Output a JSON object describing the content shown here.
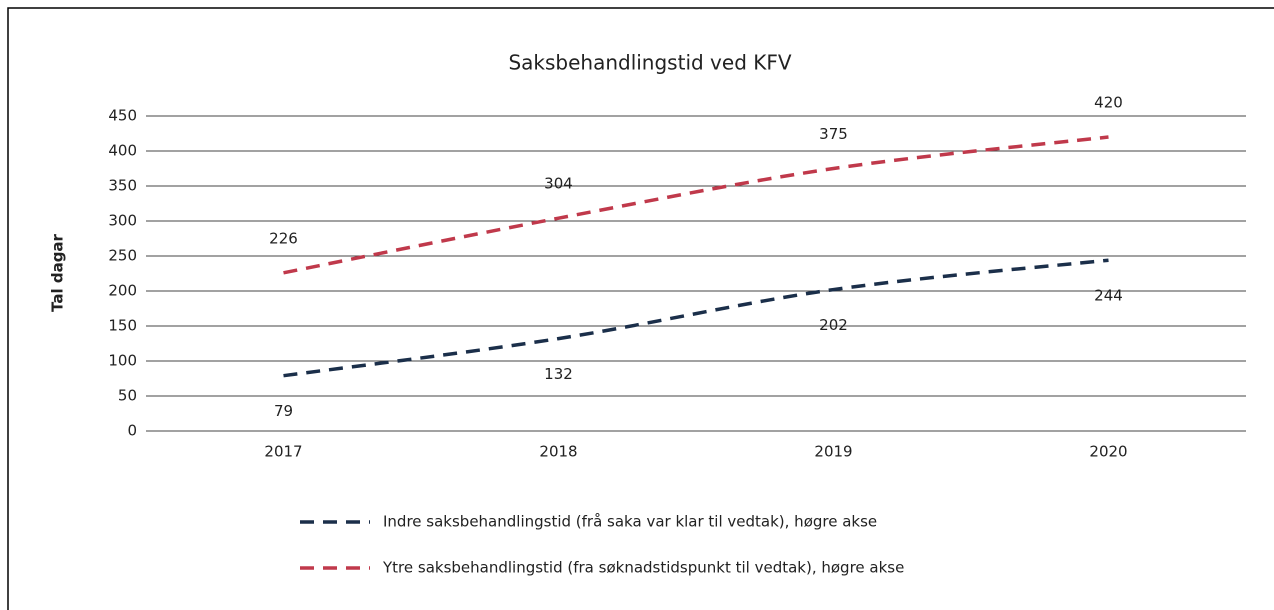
{
  "chart_data": {
    "type": "line",
    "title": "Saksbehandlingstid ved KFV",
    "y_label": "Tal dagar",
    "categories": [
      "2017",
      "2018",
      "2019",
      "2020"
    ],
    "series": [
      {
        "name": "Indre saksbehandlingstid (frå saka var klar til vedtak), høgre akse",
        "color": "#1b2f4a",
        "values": [
          79,
          132,
          202,
          244
        ],
        "label_position": "below"
      },
      {
        "name": "Ytre saksbehandlingstid (fra søknadstidspunkt til vedtak), høgre akse",
        "color": "#c0394b",
        "values": [
          226,
          304,
          375,
          420
        ],
        "label_position": "above"
      }
    ],
    "ylim": [
      0,
      450
    ],
    "yticks": [
      0,
      50,
      100,
      150,
      200,
      250,
      300,
      350,
      400,
      450
    ],
    "grid": true,
    "dashed": true,
    "smooth": true,
    "legend": "bottom"
  }
}
